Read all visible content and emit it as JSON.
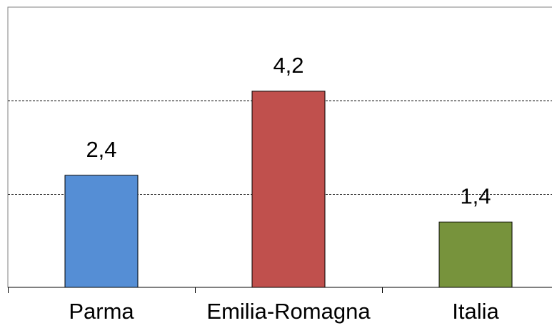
{
  "chart_data": {
    "type": "bar",
    "categories": [
      "Parma",
      "Emilia-Romagna",
      "Italia"
    ],
    "values": [
      2.4,
      4.2,
      1.4
    ],
    "value_labels": [
      "2,4",
      "4,2",
      "1,4"
    ],
    "colors": [
      "#558ED5",
      "#C0504D",
      "#77933C"
    ],
    "ylim": [
      0,
      6
    ],
    "gridlines": [
      2,
      4
    ],
    "grid": "dashed horizontal",
    "legend": "none",
    "title": "",
    "xlabel": "",
    "ylabel": ""
  }
}
